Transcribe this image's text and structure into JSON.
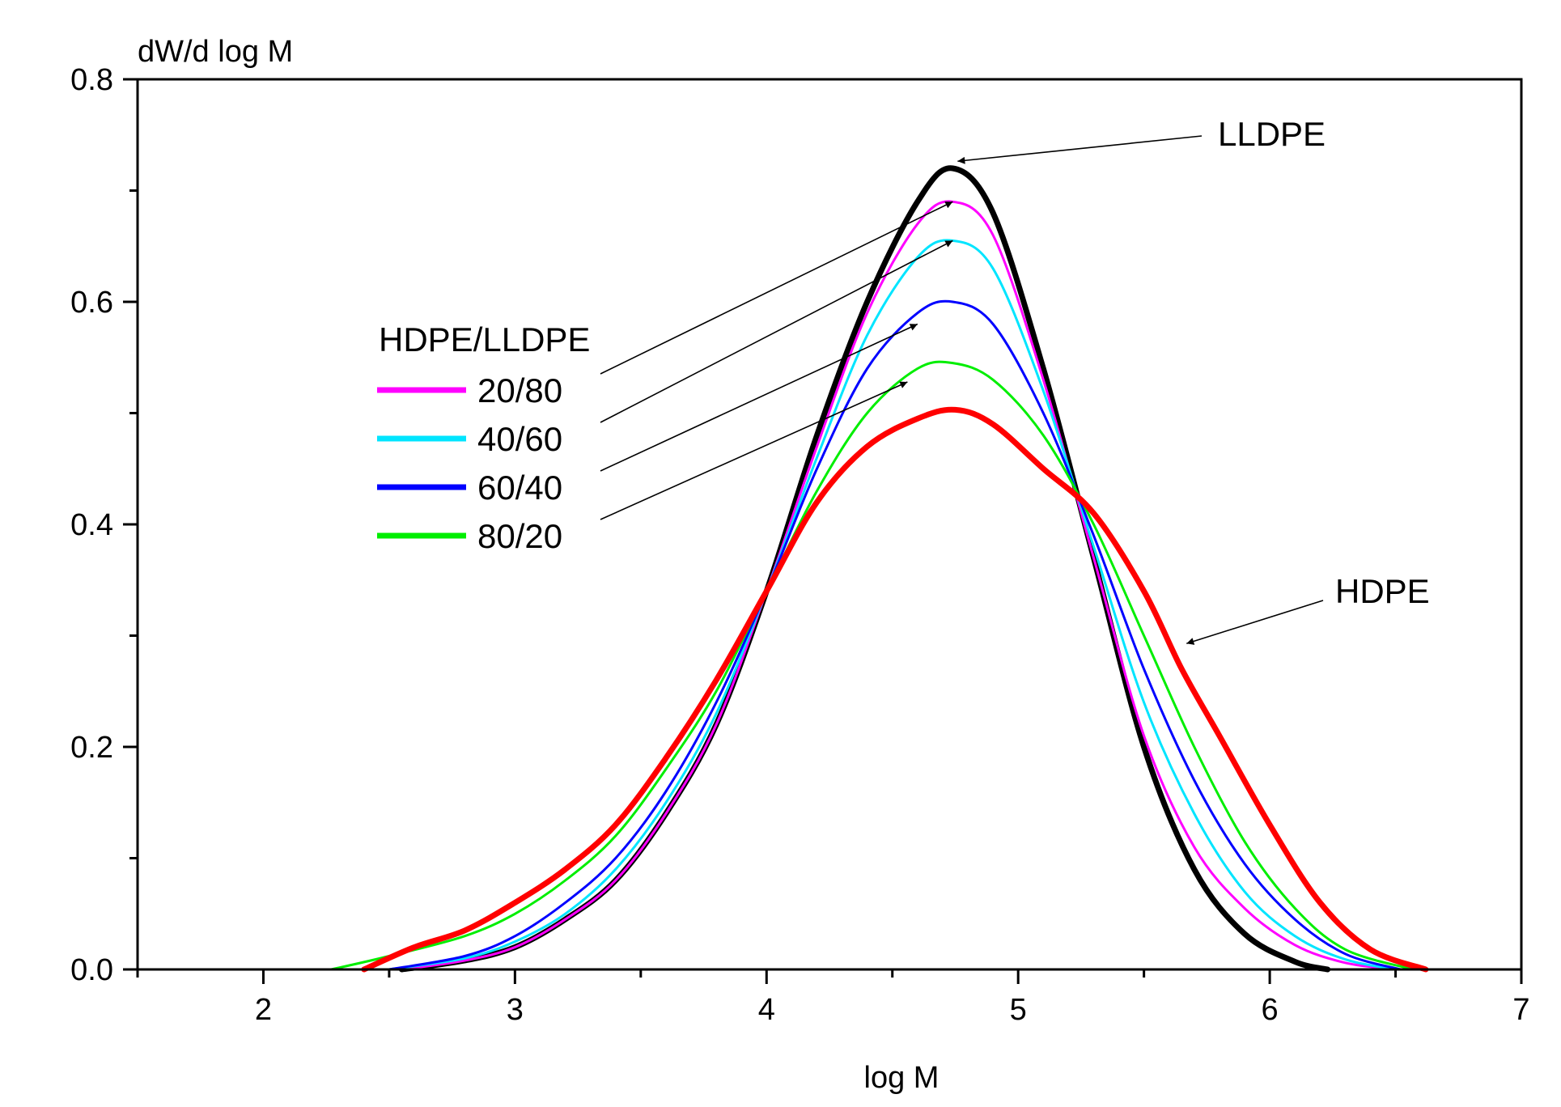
{
  "chart_data": {
    "type": "line",
    "title": "",
    "xlabel": "log M",
    "ylabel": "dW/d log M",
    "xlim": [
      1.5,
      7
    ],
    "ylim": [
      0,
      0.8
    ],
    "x_ticks": [
      2,
      3,
      4,
      5,
      6,
      7
    ],
    "x_minor_ticks": [
      1.5,
      2.5,
      3.5,
      4.5,
      5.5,
      6.5
    ],
    "y_ticks": [
      0.0,
      0.2,
      0.4,
      0.6,
      0.8
    ],
    "y_minor_ticks": [
      0.1,
      0.3,
      0.5,
      0.7
    ],
    "grid": false,
    "legend": {
      "title": "HDPE/LLDPE",
      "position": "upper-left",
      "entries": [
        "20/80",
        "40/60",
        "60/40",
        "80/20"
      ]
    },
    "series": [
      {
        "name": "LLDPE",
        "color": "#000000",
        "bold": true,
        "x": [
          2.55,
          2.8,
          3.0,
          3.2,
          3.4,
          3.6,
          3.8,
          4.0,
          4.2,
          4.4,
          4.6,
          4.74,
          4.9,
          5.1,
          5.3,
          5.5,
          5.7,
          5.9,
          6.1,
          6.23
        ],
        "y": [
          0.0,
          0.008,
          0.02,
          0.045,
          0.08,
          0.14,
          0.22,
          0.34,
          0.48,
          0.6,
          0.69,
          0.72,
          0.68,
          0.54,
          0.37,
          0.2,
          0.09,
          0.032,
          0.007,
          0.0
        ]
      },
      {
        "name": "20/80",
        "color": "#ff00ff",
        "bold": false,
        "x": [
          2.55,
          2.8,
          3.0,
          3.2,
          3.4,
          3.6,
          3.8,
          4.0,
          4.2,
          4.4,
          4.6,
          4.74,
          4.9,
          5.1,
          5.3,
          5.5,
          5.7,
          5.9,
          6.1,
          6.3,
          6.5
        ],
        "y": [
          0.0,
          0.008,
          0.02,
          0.045,
          0.08,
          0.14,
          0.22,
          0.34,
          0.47,
          0.59,
          0.67,
          0.69,
          0.66,
          0.53,
          0.37,
          0.21,
          0.11,
          0.055,
          0.022,
          0.006,
          0.0
        ]
      },
      {
        "name": "40/60",
        "color": "#00e5ff",
        "bold": false,
        "x": [
          2.5,
          2.8,
          3.0,
          3.2,
          3.4,
          3.6,
          3.8,
          4.0,
          4.2,
          4.4,
          4.6,
          4.74,
          4.9,
          5.1,
          5.3,
          5.5,
          5.7,
          5.9,
          6.1,
          6.3,
          6.5
        ],
        "y": [
          0.0,
          0.01,
          0.025,
          0.05,
          0.09,
          0.15,
          0.23,
          0.34,
          0.46,
          0.57,
          0.64,
          0.655,
          0.63,
          0.52,
          0.38,
          0.24,
          0.14,
          0.07,
          0.03,
          0.009,
          0.0
        ]
      },
      {
        "name": "60/40",
        "color": "#0000ff",
        "bold": false,
        "x": [
          2.5,
          2.8,
          3.0,
          3.2,
          3.4,
          3.6,
          3.8,
          4.0,
          4.2,
          4.4,
          4.6,
          4.74,
          4.9,
          5.1,
          5.3,
          5.5,
          5.7,
          5.9,
          6.1,
          6.3,
          6.52
        ],
        "y": [
          0.0,
          0.012,
          0.03,
          0.06,
          0.1,
          0.16,
          0.24,
          0.34,
          0.45,
          0.54,
          0.59,
          0.6,
          0.58,
          0.5,
          0.39,
          0.27,
          0.17,
          0.095,
          0.045,
          0.014,
          0.0
        ]
      },
      {
        "name": "80/20",
        "color": "#00ee00",
        "bold": false,
        "x": [
          2.27,
          2.5,
          2.8,
          3.0,
          3.2,
          3.4,
          3.6,
          3.8,
          4.0,
          4.2,
          4.4,
          4.6,
          4.74,
          4.9,
          5.1,
          5.3,
          5.5,
          5.7,
          5.9,
          6.1,
          6.3,
          6.57
        ],
        "y": [
          0.0,
          0.012,
          0.03,
          0.05,
          0.08,
          0.12,
          0.18,
          0.25,
          0.34,
          0.43,
          0.5,
          0.54,
          0.545,
          0.53,
          0.48,
          0.4,
          0.3,
          0.2,
          0.115,
          0.055,
          0.018,
          0.0
        ]
      },
      {
        "name": "HDPE",
        "color": "#ff0000",
        "bold": true,
        "x": [
          2.4,
          2.6,
          2.8,
          3.0,
          3.2,
          3.4,
          3.6,
          3.8,
          4.0,
          4.2,
          4.4,
          4.6,
          4.75,
          4.9,
          5.1,
          5.3,
          5.5,
          5.65,
          5.8,
          6.0,
          6.2,
          6.4,
          6.62
        ],
        "y": [
          0.0,
          0.02,
          0.035,
          0.06,
          0.09,
          0.13,
          0.19,
          0.26,
          0.34,
          0.42,
          0.47,
          0.495,
          0.503,
          0.49,
          0.45,
          0.41,
          0.34,
          0.27,
          0.21,
          0.13,
          0.06,
          0.018,
          0.0
        ]
      }
    ],
    "annotations": [
      {
        "text": "LLDPE",
        "target_series": "LLDPE",
        "target_x": 4.74,
        "target_y": 0.722
      },
      {
        "text": "HDPE",
        "target_series": "HDPE",
        "target_x": 5.65,
        "target_y": 0.29
      }
    ],
    "legend_pointers": [
      {
        "entry": "20/80",
        "target_x": 4.74,
        "target_y": 0.69
      },
      {
        "entry": "40/60",
        "target_x": 4.74,
        "target_y": 0.655
      },
      {
        "entry": "60/40",
        "target_x": 4.6,
        "target_y": 0.58
      },
      {
        "entry": "80/20",
        "target_x": 4.56,
        "target_y": 0.528
      }
    ]
  }
}
